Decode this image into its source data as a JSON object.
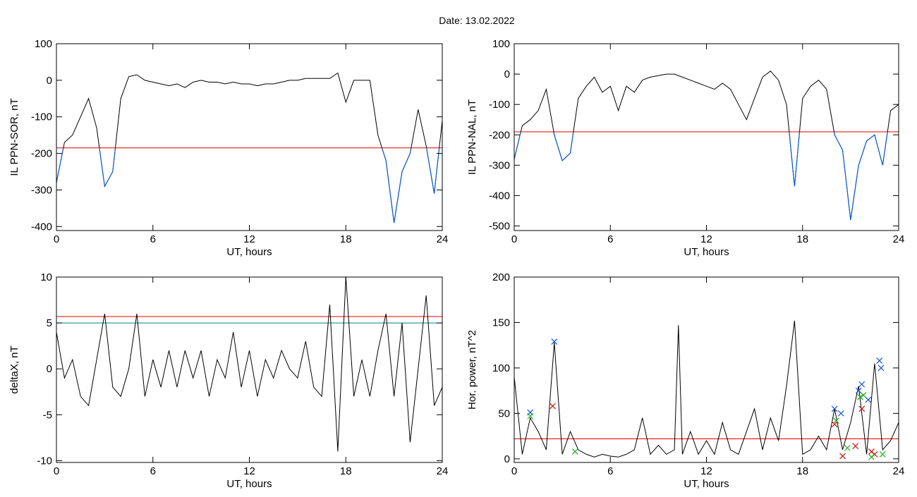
{
  "date_title": "Date:  13.02.2022",
  "chart_data": [
    {
      "type": "line",
      "ylabel": "IL PPN-SOR, nT",
      "xlabel": "UT, hours",
      "xlim": [
        0,
        24
      ],
      "xticks": [
        0,
        6,
        12,
        18,
        24
      ],
      "ylim": [
        -411,
        100
      ],
      "yticks": [
        100,
        0,
        -100,
        -200,
        -300,
        -400
      ],
      "hlines": [
        {
          "value": -185,
          "color": "#e00000"
        }
      ],
      "x": [
        0,
        0.5,
        1,
        1.5,
        2,
        2.5,
        3,
        3.5,
        4,
        4.5,
        5,
        5.5,
        6,
        6.5,
        7,
        7.5,
        8,
        8.5,
        9,
        9.5,
        10,
        10.5,
        11,
        11.5,
        12,
        12.5,
        13,
        13.5,
        14,
        14.5,
        15,
        15.5,
        16,
        16.5,
        17,
        17.5,
        18,
        18.5,
        19,
        19.5,
        20,
        20.5,
        21,
        21.5,
        22,
        22.5,
        23,
        23.5,
        24
      ],
      "series": [
        {
          "color": "#000000",
          "below_color": "#1060d0",
          "values": [
            -280,
            -170,
            -150,
            -100,
            -50,
            -130,
            -290,
            -250,
            -50,
            10,
            15,
            0,
            -5,
            -10,
            -15,
            -10,
            -20,
            -5,
            0,
            -5,
            -5,
            -10,
            -5,
            -10,
            -10,
            -15,
            -10,
            -10,
            -5,
            0,
            0,
            5,
            5,
            5,
            5,
            20,
            -60,
            0,
            0,
            0,
            -150,
            -220,
            -390,
            -250,
            -200,
            -80,
            -180,
            -310,
            -110
          ]
        }
      ]
    },
    {
      "type": "line",
      "ylabel": "IL PPN-NAL, nT",
      "xlabel": "UT, hours",
      "xlim": [
        0,
        24
      ],
      "xticks": [
        0,
        6,
        12,
        18,
        24
      ],
      "ylim": [
        -515,
        100
      ],
      "yticks": [
        100,
        0,
        -100,
        -200,
        -300,
        -400,
        -500
      ],
      "hlines": [
        {
          "value": -190,
          "color": "#e00000"
        }
      ],
      "x": [
        0,
        0.5,
        1,
        1.5,
        2,
        2.5,
        3,
        3.5,
        4,
        4.5,
        5,
        5.5,
        6,
        6.5,
        7,
        7.5,
        8,
        8.5,
        9,
        9.5,
        10,
        10.5,
        11,
        11.5,
        12,
        12.5,
        13,
        13.5,
        14,
        14.5,
        15,
        15.5,
        16,
        16.5,
        17,
        17.5,
        18,
        18.5,
        19,
        19.5,
        20,
        20.5,
        21,
        21.5,
        22,
        22.5,
        23,
        23.5,
        24
      ],
      "series": [
        {
          "color": "#000000",
          "below_color": "#1060d0",
          "values": [
            -280,
            -170,
            -150,
            -120,
            -50,
            -200,
            -285,
            -260,
            -80,
            -40,
            -10,
            -60,
            -40,
            -120,
            -40,
            -60,
            -20,
            -10,
            -5,
            0,
            0,
            -10,
            -20,
            -30,
            -40,
            -50,
            -30,
            -50,
            -100,
            -150,
            -80,
            -10,
            10,
            -20,
            -100,
            -370,
            -80,
            -40,
            -20,
            -50,
            -200,
            -250,
            -480,
            -300,
            -220,
            -200,
            -300,
            -120,
            -100
          ]
        }
      ]
    },
    {
      "type": "line",
      "ylabel": "deltaX, nT",
      "xlabel": "UT, hours",
      "xlim": [
        0,
        24
      ],
      "xticks": [
        0,
        6,
        12,
        18,
        24
      ],
      "ylim": [
        -10.2,
        10
      ],
      "yticks": [
        10,
        5,
        0,
        -5,
        -10
      ],
      "hlines": [
        {
          "value": 5.7,
          "color": "#e00000"
        },
        {
          "value": 5,
          "color": "#008080"
        }
      ],
      "x": [
        0,
        0.5,
        1,
        1.5,
        2,
        2.5,
        3,
        3.5,
        4,
        4.5,
        5,
        5.5,
        6,
        6.5,
        7,
        7.5,
        8,
        8.5,
        9,
        9.5,
        10,
        10.5,
        11,
        11.5,
        12,
        12.5,
        13,
        13.5,
        14,
        14.5,
        15,
        15.5,
        16,
        16.5,
        17,
        17.5,
        18,
        18.5,
        19,
        19.5,
        20,
        20.5,
        21,
        21.5,
        22,
        22.5,
        23,
        23.5,
        24
      ],
      "series": [
        {
          "color": "#000000",
          "values": [
            4,
            -1,
            1,
            -3,
            -4,
            1,
            6,
            -2,
            -3,
            0,
            6,
            -3,
            1,
            -2,
            2,
            -2,
            2,
            -1,
            2,
            -3,
            1,
            -1,
            4,
            -2,
            2,
            -3,
            1,
            -1,
            2,
            0,
            -1,
            3,
            -2,
            -3,
            7,
            -9,
            10,
            -3,
            1,
            -3,
            2,
            6,
            -3,
            5,
            -8,
            0,
            8,
            -4,
            -2
          ]
        }
      ]
    },
    {
      "type": "line",
      "ylabel": "Hor. power, nT^2",
      "xlabel": "UT, hours",
      "xlim": [
        0,
        24
      ],
      "xticks": [
        0,
        6,
        12,
        18,
        24
      ],
      "ylim": [
        -4,
        200
      ],
      "yticks": [
        200,
        150,
        100,
        50,
        0
      ],
      "hlines": [
        {
          "value": 22,
          "color": "#e00000"
        }
      ],
      "x": [
        0,
        0.5,
        1,
        1.5,
        2,
        2.5,
        3,
        3.5,
        4,
        4.5,
        5,
        5.5,
        6,
        6.5,
        7,
        7.5,
        8,
        8.5,
        9,
        9.5,
        10,
        10.25,
        10.5,
        11,
        11.5,
        12,
        12.5,
        13,
        13.5,
        14,
        14.5,
        15,
        15.5,
        16,
        16.5,
        17,
        17.5,
        18,
        18.5,
        19,
        19.5,
        20,
        20.5,
        21,
        21.5,
        22,
        22.5,
        23,
        23.5,
        24
      ],
      "series": [
        {
          "color": "#000000",
          "values": [
            90,
            5,
            45,
            30,
            10,
            128,
            5,
            30,
            10,
            5,
            2,
            5,
            3,
            2,
            5,
            10,
            45,
            5,
            15,
            5,
            10,
            147,
            5,
            30,
            5,
            20,
            5,
            40,
            10,
            5,
            30,
            55,
            10,
            45,
            20,
            80,
            152,
            5,
            10,
            25,
            10,
            55,
            10,
            40,
            80,
            5,
            105,
            10,
            20,
            40
          ]
        }
      ],
      "markers": [
        {
          "color": "#1050e0",
          "x": [
            1.0,
            2.5,
            20.0,
            20.4,
            21.5,
            21.7,
            22.1,
            22.8,
            22.9
          ],
          "values": [
            51,
            129,
            55,
            50,
            75,
            82,
            65,
            108,
            100
          ]
        },
        {
          "color": "#d01010",
          "x": [
            2.4,
            20.0,
            20.5,
            21.3,
            21.7,
            22.3,
            22.5
          ],
          "values": [
            58,
            38,
            3,
            14,
            55,
            8,
            5
          ]
        },
        {
          "color": "#20b020",
          "x": [
            1.0,
            3.8,
            20.1,
            20.8,
            21.6,
            21.8,
            22.3,
            23.0
          ],
          "values": [
            47,
            8,
            42,
            12,
            68,
            70,
            2,
            5
          ]
        }
      ]
    }
  ]
}
